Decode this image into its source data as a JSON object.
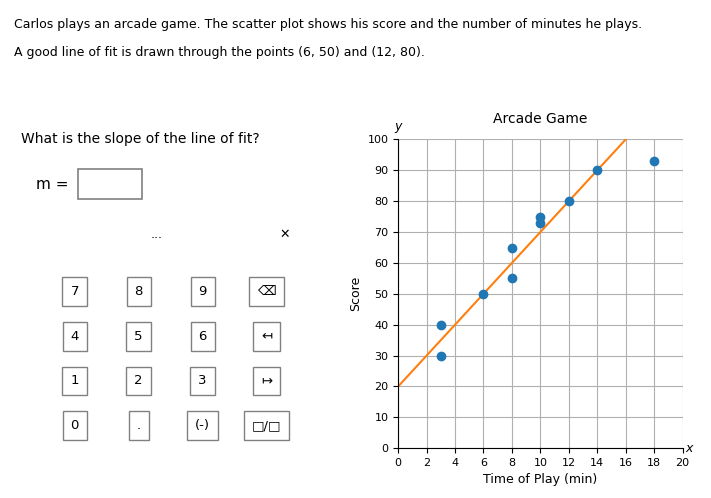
{
  "chart_data": {
    "type": "scatter",
    "title": "Arcade Game",
    "x_label": "Time of Play (min)",
    "y_label": "Score",
    "x": [
      3,
      3,
      6,
      8,
      8,
      10,
      10,
      12,
      14,
      18
    ],
    "values": [
      30,
      40,
      50,
      55,
      65,
      73,
      75,
      80,
      90,
      93
    ],
    "fit_line": {
      "slope": 5,
      "intercept": 20
    },
    "xlim": [
      0,
      20
    ],
    "ylim": [
      0,
      100
    ],
    "xticks": [
      0,
      2,
      4,
      6,
      8,
      10,
      12,
      14,
      16,
      18,
      20
    ],
    "yticks": [
      0,
      10,
      20,
      30,
      40,
      50,
      60,
      70,
      80,
      90,
      100
    ],
    "grid": true,
    "axis_letters": {
      "x": "x",
      "y": "y"
    },
    "header": [
      "Carlos plays an arcade game. The scatter plot shows his score and the number of minutes he plays.",
      "A good line of fit is drawn through the points (6, 50) and (12, 80)."
    ],
    "question": "What is the slope of the line of fit?",
    "equation_label": "m =",
    "keypad_header": [
      "...",
      "✕"
    ],
    "keypad": [
      [
        "7",
        "8",
        "9",
        "⌫"
      ],
      [
        "4",
        "5",
        "6",
        "↤"
      ],
      [
        "1",
        "2",
        "3",
        "↦"
      ],
      [
        "0",
        ".",
        "(-)",
        "□/□"
      ]
    ]
  }
}
